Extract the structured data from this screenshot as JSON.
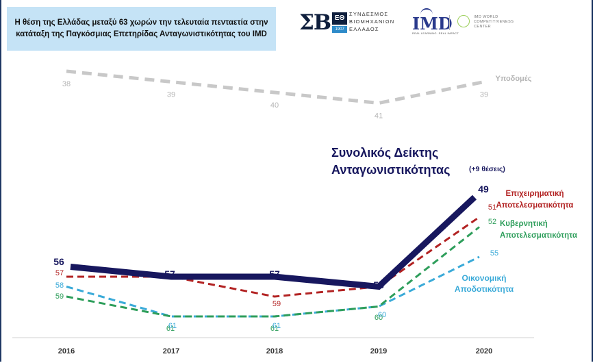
{
  "title": "Η θέση της Ελλάδας μεταξύ 63 χωρών την τελευταία πενταετία στην κατάταξη της Παγκόσμιας Επετηρίδας Ανταγωνιστικότητας του IMD",
  "logos": {
    "seb_letters": "ΣΒ",
    "seb_box": "ΕΘ",
    "seb_year": "1907",
    "seb_line1": "ΣΥΝΔΕΣΜΟΣ",
    "seb_line2": "ΒΙΟΜΗΧΑΝΙΩΝ",
    "seb_line3": "ΕΛΛΑΔΟΣ",
    "imd": "IMD",
    "imd_sub": "REAL LEARNING. REAL IMPACT",
    "wcc_line1": "IMD WORLD",
    "wcc_line2": "COMPETITIVENESS",
    "wcc_line3": "CENTER"
  },
  "chart_data": {
    "type": "line",
    "x": [
      "2016",
      "2017",
      "2018",
      "2019",
      "2020"
    ],
    "y_inverted": true,
    "series": [
      {
        "name": "Υποδομές",
        "values": [
          38,
          39,
          40,
          41,
          39
        ],
        "color": "#c8c8c8",
        "style": "dashed"
      },
      {
        "name": "Συνολικός Δείκτης Ανταγωνιστικότητας",
        "note": "(+9 θέσεις)",
        "values": [
          56,
          57,
          57,
          58,
          49
        ],
        "color": "#17175e",
        "style": "solid-thick"
      },
      {
        "name": "Επιχειρηματική Αποτελεσματικότητα",
        "values": [
          57,
          57,
          59,
          58,
          51
        ],
        "color": "#b22222",
        "style": "dashed"
      },
      {
        "name": "Κυβερνητική Αποτελεσματικότητα",
        "values": [
          59,
          61,
          61,
          60,
          52
        ],
        "color": "#2e9e5b",
        "style": "dashed"
      },
      {
        "name": "Οικονομική Αποδοτικότητα",
        "values": [
          58,
          61,
          61,
          60,
          55
        ],
        "color": "#3aaad8",
        "style": "dashed"
      }
    ],
    "display_labels": {
      "Υποδομές": [
        "38",
        "39",
        "40",
        "41",
        "39"
      ],
      "Συνολικός Δείκτης Ανταγωνιστικότητας": [
        "56",
        "57",
        "57",
        "58",
        "49"
      ],
      "Επιχειρηματική Αποτελεσματικότητα": [
        "57",
        "",
        "59",
        "",
        "51"
      ],
      "Κυβερνητική Αποτελεσματικότητα": [
        "59",
        "61",
        "61",
        "60",
        "52"
      ],
      "Οικονομική Αποδοτικότητα": [
        "58",
        "61",
        "61",
        "60",
        "55"
      ]
    },
    "colors": {
      "axis": "#d0d0d0",
      "tick": "#333333"
    }
  }
}
